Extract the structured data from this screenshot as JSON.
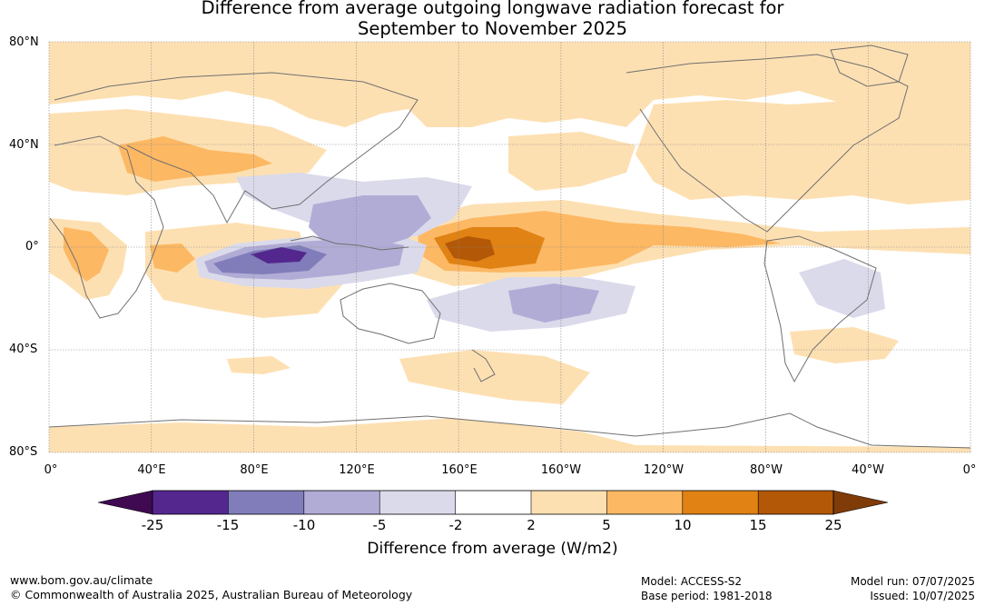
{
  "title": {
    "line1": "Difference from average outgoing longwave radiation forecast for",
    "line2": "September to November 2025"
  },
  "map": {
    "lat_labels": [
      "80°N",
      "40°N",
      "0°",
      "40°S",
      "80°S"
    ],
    "lon_labels": [
      "0°",
      "40°E",
      "80°E",
      "120°E",
      "160°E",
      "160°W",
      "120°W",
      "80°W",
      "40°W",
      "0°"
    ],
    "colors": {
      "neg25": "#3f0a52",
      "neg15": "#54278f",
      "neg10": "#807dba",
      "neg5": "#b1acd6",
      "neg2": "#dadaeb",
      "neutral": "#ffffff",
      "pos2": "#fde0b2",
      "pos5": "#fdb863",
      "pos10": "#e08214",
      "pos15": "#b35806",
      "pos25": "#7f3b08",
      "coast": "#707070"
    }
  },
  "colorbar": {
    "tick_labels": [
      "-25",
      "-15",
      "-10",
      "-5",
      "-2",
      "2",
      "5",
      "10",
      "15",
      "25"
    ],
    "title": "Difference from average (W/m2)"
  },
  "footer": {
    "url": "www.bom.gov.au/climate",
    "copyright": "© Commonwealth of Australia 2025, Australian Bureau of Meteorology",
    "model": "Model: ACCESS-S2",
    "base_period": "Base period: 1981-2018",
    "model_run": "Model run: 07/07/2025",
    "issued": "Issued: 10/07/2025"
  }
}
